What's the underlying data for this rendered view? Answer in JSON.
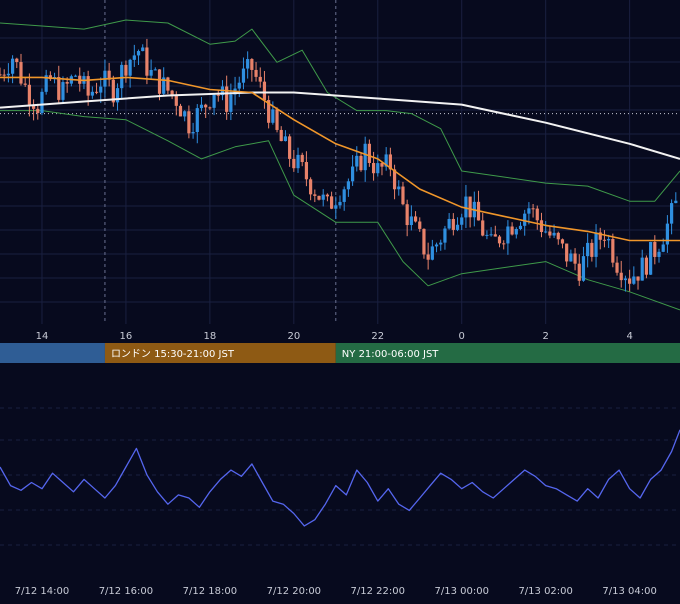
{
  "colors": {
    "background": "#070a1e",
    "grid": "#1a2040",
    "candle_up": "#2f8fe0",
    "candle_down": "#e8826a",
    "ma_fast": "#f0962a",
    "ma_slow": "#f2f2f2",
    "bollinger": "#3f9a4a",
    "oscillator": "#5566ee",
    "tokyo": "#2f5d95",
    "london": "#8e5a14",
    "newyork": "#246b44",
    "axis_text": "#c8cbd6",
    "session_text": "#ffffff"
  },
  "main_axis": {
    "ticks": [
      {
        "label": "14",
        "hour": 14
      },
      {
        "label": "16",
        "hour": 16
      },
      {
        "label": "18",
        "hour": 18
      },
      {
        "label": "20",
        "hour": 20
      },
      {
        "label": "22",
        "hour": 22
      },
      {
        "label": "0",
        "hour": 24
      },
      {
        "label": "2",
        "hour": 26
      },
      {
        "label": "4",
        "hour": 28
      }
    ]
  },
  "sessions": [
    {
      "label": "",
      "start_hour": 13.0,
      "end_hour": 15.5,
      "color_key": "tokyo"
    },
    {
      "label": "ロンドン 15:30-21:00 JST",
      "start_hour": 15.5,
      "end_hour": 21.0,
      "color_key": "london"
    },
    {
      "label": "NY 21:00-06:00 JST",
      "start_hour": 21.0,
      "end_hour": 29.2,
      "color_key": "newyork"
    }
  ],
  "bottom_axis": {
    "ticks": [
      {
        "label": "7/12 14:00",
        "hour": 14
      },
      {
        "label": "7/12 16:00",
        "hour": 16
      },
      {
        "label": "7/12 18:00",
        "hour": 18
      },
      {
        "label": "7/12 20:00",
        "hour": 20
      },
      {
        "label": "7/12 22:00",
        "hour": 22
      },
      {
        "label": "7/13 00:00",
        "hour": 24
      },
      {
        "label": "7/13 02:00",
        "hour": 26
      },
      {
        "label": "7/13 04:00",
        "hour": 28
      }
    ]
  },
  "chart_data": [
    {
      "type": "candlestick",
      "x_unit": "hour",
      "xlim": [
        13.0,
        29.2
      ],
      "ylim": [
        0,
        100
      ],
      "reference_level": 69,
      "close_path": [
        [
          13.0,
          82
        ],
        [
          13.3,
          88
        ],
        [
          13.6,
          78
        ],
        [
          13.9,
          72
        ],
        [
          14.2,
          80
        ],
        [
          14.5,
          76
        ],
        [
          14.8,
          82
        ],
        [
          15.1,
          75
        ],
        [
          15.4,
          80
        ],
        [
          15.7,
          77
        ],
        [
          16.0,
          86
        ],
        [
          16.3,
          90
        ],
        [
          16.6,
          82
        ],
        [
          16.9,
          78
        ],
        [
          17.2,
          74
        ],
        [
          17.5,
          66
        ],
        [
          17.8,
          70
        ],
        [
          18.1,
          77
        ],
        [
          18.4,
          73
        ],
        [
          18.7,
          80
        ],
        [
          19.0,
          84
        ],
        [
          19.3,
          74
        ],
        [
          19.6,
          62
        ],
        [
          19.9,
          55
        ],
        [
          20.2,
          50
        ],
        [
          20.5,
          44
        ],
        [
          20.8,
          38
        ],
        [
          21.1,
          44
        ],
        [
          21.4,
          48
        ],
        [
          21.7,
          57
        ],
        [
          22.0,
          50
        ],
        [
          22.3,
          52
        ],
        [
          22.6,
          38
        ],
        [
          22.9,
          30
        ],
        [
          23.2,
          22
        ],
        [
          23.5,
          28
        ],
        [
          23.8,
          35
        ],
        [
          24.1,
          40
        ],
        [
          24.4,
          33
        ],
        [
          24.7,
          25
        ],
        [
          25.0,
          30
        ],
        [
          25.3,
          34
        ],
        [
          25.6,
          38
        ],
        [
          25.9,
          32
        ],
        [
          26.2,
          27
        ],
        [
          26.5,
          22
        ],
        [
          26.8,
          18
        ],
        [
          27.1,
          24
        ],
        [
          27.4,
          30
        ],
        [
          27.7,
          20
        ],
        [
          28.0,
          15
        ],
        [
          28.3,
          18
        ],
        [
          28.6,
          24
        ],
        [
          28.9,
          32
        ],
        [
          29.2,
          42
        ]
      ],
      "ma_fast": [
        [
          13.0,
          81
        ],
        [
          14.0,
          81
        ],
        [
          15.0,
          80
        ],
        [
          16.0,
          81
        ],
        [
          17.0,
          80
        ],
        [
          18.0,
          77
        ],
        [
          19.0,
          76
        ],
        [
          20.0,
          67
        ],
        [
          21.0,
          59
        ],
        [
          22.0,
          54
        ],
        [
          23.0,
          44
        ],
        [
          24.0,
          38
        ],
        [
          25.0,
          35
        ],
        [
          26.0,
          32
        ],
        [
          27.0,
          30
        ],
        [
          28.0,
          27
        ],
        [
          29.2,
          27
        ]
      ],
      "ma_slow": [
        [
          13.0,
          71
        ],
        [
          15.0,
          73
        ],
        [
          17.0,
          75
        ],
        [
          19.0,
          76
        ],
        [
          20.0,
          76
        ],
        [
          21.0,
          75
        ],
        [
          22.0,
          74
        ],
        [
          24.0,
          72
        ],
        [
          26.0,
          66
        ],
        [
          28.0,
          59
        ],
        [
          29.2,
          54
        ]
      ],
      "bb_upper": [
        [
          13.0,
          99
        ],
        [
          14.0,
          98
        ],
        [
          15.0,
          97
        ],
        [
          16.0,
          100
        ],
        [
          17.0,
          99
        ],
        [
          18.0,
          92
        ],
        [
          18.6,
          93
        ],
        [
          19.0,
          97
        ],
        [
          19.6,
          86
        ],
        [
          20.2,
          90
        ],
        [
          20.8,
          76
        ],
        [
          21.5,
          70
        ],
        [
          22.2,
          70
        ],
        [
          22.8,
          69
        ],
        [
          23.5,
          64
        ],
        [
          24.0,
          50
        ],
        [
          25.0,
          48
        ],
        [
          26.0,
          46
        ],
        [
          27.0,
          45
        ],
        [
          28.0,
          40
        ],
        [
          28.6,
          40
        ],
        [
          29.2,
          50
        ]
      ],
      "bb_lower": [
        [
          13.0,
          70
        ],
        [
          14.0,
          70
        ],
        [
          15.0,
          68
        ],
        [
          16.0,
          67
        ],
        [
          17.0,
          60
        ],
        [
          17.8,
          54
        ],
        [
          18.6,
          58
        ],
        [
          19.4,
          60
        ],
        [
          20.0,
          42
        ],
        [
          21.0,
          33
        ],
        [
          22.0,
          33
        ],
        [
          22.6,
          20
        ],
        [
          23.2,
          12
        ],
        [
          24.0,
          16
        ],
        [
          25.0,
          18
        ],
        [
          26.0,
          20
        ],
        [
          27.0,
          14
        ],
        [
          28.0,
          10
        ],
        [
          29.2,
          4
        ]
      ]
    },
    {
      "type": "line",
      "x_unit": "hour",
      "xlim": [
        13.0,
        29.2
      ],
      "ylim": [
        0,
        100
      ],
      "values": [
        [
          13.0,
          60
        ],
        [
          13.25,
          48
        ],
        [
          13.5,
          45
        ],
        [
          13.75,
          50
        ],
        [
          14.0,
          46
        ],
        [
          14.25,
          56
        ],
        [
          14.5,
          50
        ],
        [
          14.75,
          44
        ],
        [
          15.0,
          52
        ],
        [
          15.25,
          46
        ],
        [
          15.5,
          40
        ],
        [
          15.75,
          48
        ],
        [
          16.0,
          60
        ],
        [
          16.25,
          72
        ],
        [
          16.5,
          55
        ],
        [
          16.75,
          44
        ],
        [
          17.0,
          36
        ],
        [
          17.25,
          42
        ],
        [
          17.5,
          40
        ],
        [
          17.75,
          34
        ],
        [
          18.0,
          44
        ],
        [
          18.25,
          52
        ],
        [
          18.5,
          58
        ],
        [
          18.75,
          54
        ],
        [
          19.0,
          62
        ],
        [
          19.25,
          50
        ],
        [
          19.5,
          38
        ],
        [
          19.75,
          36
        ],
        [
          20.0,
          30
        ],
        [
          20.25,
          22
        ],
        [
          20.5,
          26
        ],
        [
          20.75,
          36
        ],
        [
          21.0,
          48
        ],
        [
          21.25,
          42
        ],
        [
          21.5,
          58
        ],
        [
          21.75,
          50
        ],
        [
          22.0,
          38
        ],
        [
          22.25,
          46
        ],
        [
          22.5,
          36
        ],
        [
          22.75,
          32
        ],
        [
          23.0,
          40
        ],
        [
          23.25,
          48
        ],
        [
          23.5,
          56
        ],
        [
          23.75,
          52
        ],
        [
          24.0,
          46
        ],
        [
          24.25,
          50
        ],
        [
          24.5,
          44
        ],
        [
          24.75,
          40
        ],
        [
          25.0,
          46
        ],
        [
          25.25,
          52
        ],
        [
          25.5,
          58
        ],
        [
          25.75,
          54
        ],
        [
          26.0,
          48
        ],
        [
          26.25,
          46
        ],
        [
          26.5,
          42
        ],
        [
          26.75,
          38
        ],
        [
          27.0,
          46
        ],
        [
          27.25,
          40
        ],
        [
          27.5,
          52
        ],
        [
          27.75,
          58
        ],
        [
          28.0,
          46
        ],
        [
          28.25,
          40
        ],
        [
          28.5,
          52
        ],
        [
          28.75,
          58
        ],
        [
          29.0,
          70
        ],
        [
          29.2,
          84
        ]
      ]
    }
  ]
}
